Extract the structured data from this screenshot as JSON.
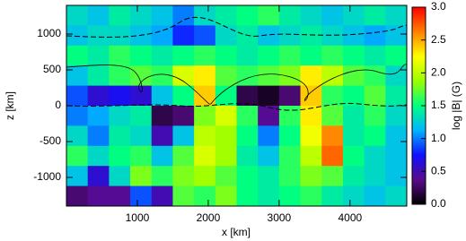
{
  "chart_data": {
    "type": "heatmap",
    "xlabel": "x [km]",
    "ylabel": "z [km]",
    "colorbar_label": "log |B| (G)",
    "xlim": [
      0,
      4800
    ],
    "ylim": [
      -1400,
      1400
    ],
    "xticks": [
      1000,
      2000,
      3000,
      4000
    ],
    "yticks": [
      1000,
      500,
      0,
      -500,
      -1000
    ],
    "clim": [
      0,
      3
    ],
    "cticks": [
      {
        "value": 0,
        "label": "0.0"
      },
      0.5,
      {
        "value": 1,
        "label": "1.0"
      },
      1.5,
      {
        "value": 2,
        "label": "2.0"
      },
      2.5,
      {
        "value": 3,
        "label": "3.0"
      }
    ],
    "colorscale": [
      "#000000",
      "#5a0b8c",
      "#1010ff",
      "#00b4ff",
      "#00ff80",
      "#9bff00",
      "#ffff00",
      "#ff8000",
      "#ff0000"
    ],
    "x": [
      150,
      450,
      750,
      1050,
      1350,
      1650,
      1950,
      2250,
      2550,
      2850,
      3150,
      3450,
      3750,
      4050,
      4350,
      4650
    ],
    "y": [
      1260,
      980,
      700,
      420,
      140,
      -140,
      -420,
      -700,
      -980,
      -1260
    ],
    "values": [
      [
        1.3,
        1.2,
        1.4,
        1.3,
        1.2,
        1.0,
        1.3,
        1.4,
        1.5,
        1.6,
        1.4,
        1.3,
        1.2,
        1.3,
        1.4,
        1.3
      ],
      [
        1.2,
        1.3,
        1.3,
        1.2,
        1.1,
        0.8,
        0.9,
        1.3,
        1.4,
        1.2,
        1.3,
        1.4,
        1.3,
        1.2,
        1.1,
        1.2
      ],
      [
        1.5,
        1.4,
        1.6,
        1.5,
        1.4,
        1.5,
        1.6,
        1.5,
        1.4,
        1.5,
        1.6,
        1.5,
        1.6,
        1.5,
        1.4,
        1.5
      ],
      [
        1.2,
        1.4,
        1.6,
        1.7,
        1.6,
        2.1,
        2.3,
        1.7,
        1.6,
        1.7,
        1.8,
        2.3,
        2.0,
        1.7,
        1.6,
        1.3
      ],
      [
        0.9,
        0.6,
        0.7,
        0.6,
        1.2,
        1.5,
        2.4,
        1.5,
        0.2,
        0.1,
        0.3,
        2.4,
        1.6,
        1.5,
        1.7,
        1.4
      ],
      [
        1.0,
        1.1,
        1.3,
        1.4,
        0.2,
        0.3,
        1.8,
        2.1,
        1.6,
        0.4,
        1.6,
        2.3,
        1.7,
        1.4,
        1.6,
        1.3
      ],
      [
        1.3,
        1.0,
        1.4,
        1.3,
        0.5,
        1.2,
        2.0,
        1.9,
        1.5,
        1.0,
        1.5,
        2.2,
        2.6,
        1.4,
        1.5,
        1.2
      ],
      [
        1.6,
        1.3,
        1.5,
        1.6,
        1.2,
        1.7,
        2.1,
        1.9,
        1.4,
        1.2,
        1.6,
        2.0,
        2.7,
        1.5,
        1.3,
        1.2
      ],
      [
        1.2,
        0.6,
        1.3,
        1.8,
        1.6,
        1.8,
        1.9,
        1.7,
        1.5,
        1.4,
        1.6,
        1.8,
        1.7,
        1.4,
        1.3,
        1.2
      ],
      [
        0.3,
        0.4,
        0.4,
        0.9,
        0.5,
        1.7,
        1.6,
        1.8,
        1.5,
        1.4,
        1.5,
        1.6,
        1.4,
        1.3,
        1.2,
        1.3
      ]
    ]
  }
}
